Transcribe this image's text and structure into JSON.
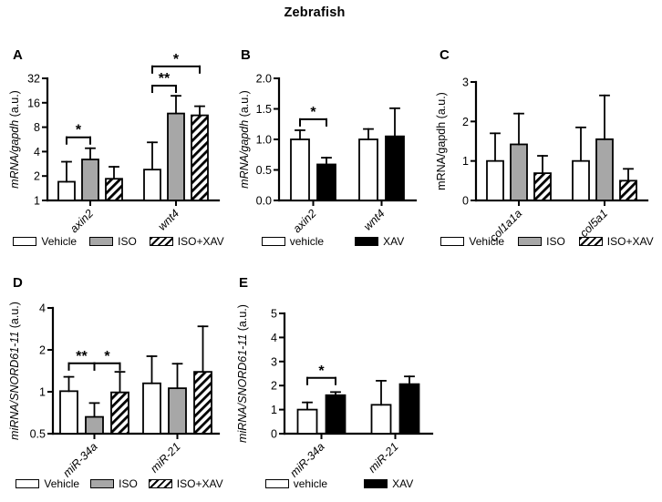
{
  "title": "Zebrafish",
  "colors": {
    "bar_gray": "#a7a7a7",
    "bar_black": "#000000",
    "bar_white": "#ffffff",
    "axis": "#000000",
    "background": "#ffffff"
  },
  "chart_data": [
    {
      "panel": "A",
      "type": "bar",
      "scale": "log2",
      "ylabel_main": "mRNA/gapdh",
      "ylabel_unit": " (a.u.)",
      "ylabel_italic": true,
      "ylim": [
        1,
        32
      ],
      "yticks": [
        {
          "v": 1,
          "t": "1"
        },
        {
          "v": 2,
          "t": "2"
        },
        {
          "v": 4,
          "t": "4"
        },
        {
          "v": 8,
          "t": "8"
        },
        {
          "v": 16,
          "t": "16"
        },
        {
          "v": 32,
          "t": "32"
        }
      ],
      "categories": [
        "axin2",
        "wnt4"
      ],
      "series": [
        {
          "name": "Vehicle",
          "fill": "white",
          "values": [
            1.7,
            2.4
          ],
          "err_top": [
            3.0,
            5.2
          ]
        },
        {
          "name": "ISO",
          "fill": "gray",
          "values": [
            3.2,
            11.8
          ],
          "err_top": [
            4.4,
            19.5
          ]
        },
        {
          "name": "ISO+XAV",
          "fill": "hatch",
          "values": [
            1.85,
            11.2
          ],
          "err_top": [
            2.6,
            14.5
          ]
        }
      ],
      "significance": [
        {
          "cat": 0,
          "from": 0,
          "to": 1,
          "label": "*",
          "y": 6
        },
        {
          "cat": 1,
          "from": 0,
          "to": 1,
          "label": "**",
          "y": 26
        },
        {
          "cat": 1,
          "from": 0,
          "to": 2,
          "label": "*",
          "y": 45
        }
      ],
      "legend": [
        "Vehicle",
        "ISO",
        "ISO+XAV"
      ]
    },
    {
      "panel": "B",
      "type": "bar",
      "scale": "linear",
      "ylabel_main": "mRNA/gapdh",
      "ylabel_unit": " (a.u.)",
      "ylabel_italic": true,
      "ylim": [
        0,
        2
      ],
      "yticks": [
        {
          "v": 0,
          "t": "0.0"
        },
        {
          "v": 0.5,
          "t": "0.5"
        },
        {
          "v": 1.0,
          "t": "1.0"
        },
        {
          "v": 1.5,
          "t": "1.5"
        },
        {
          "v": 2.0,
          "t": "2.0"
        }
      ],
      "categories": [
        "axin2",
        "wnt4"
      ],
      "series": [
        {
          "name": "vehicle",
          "fill": "white",
          "values": [
            1.0,
            1.0
          ],
          "err_top": [
            1.15,
            1.17
          ]
        },
        {
          "name": "XAV",
          "fill": "black",
          "values": [
            0.59,
            1.05
          ],
          "err_top": [
            0.7,
            1.51
          ]
        }
      ],
      "significance": [
        {
          "cat": 0,
          "from": 0,
          "to": 1,
          "label": "*",
          "y": 1.33
        }
      ],
      "legend": [
        "vehicle",
        "XAV"
      ]
    },
    {
      "panel": "C",
      "type": "bar",
      "scale": "linear",
      "ylabel_main": "mRNA/gapdh",
      "ylabel_unit": " (a.u.)",
      "ylabel_italic": false,
      "ylim": [
        0,
        3
      ],
      "yticks": [
        {
          "v": 0,
          "t": "0"
        },
        {
          "v": 1,
          "t": "1"
        },
        {
          "v": 2,
          "t": "2"
        },
        {
          "v": 3,
          "t": "3"
        }
      ],
      "categories": [
        "col1a1a",
        "col5a1"
      ],
      "series": [
        {
          "name": "Vehicle",
          "fill": "white",
          "values": [
            1.0,
            1.0
          ],
          "err_top": [
            1.7,
            1.85
          ]
        },
        {
          "name": "ISO",
          "fill": "gray",
          "values": [
            1.42,
            1.55
          ],
          "err_top": [
            2.2,
            2.66
          ]
        },
        {
          "name": "ISO+XAV",
          "fill": "hatch",
          "values": [
            0.69,
            0.5
          ],
          "err_top": [
            1.13,
            0.8
          ]
        }
      ],
      "significance": [],
      "legend": [
        "Vehicle",
        "ISO",
        "ISO+XAV"
      ]
    },
    {
      "panel": "D",
      "type": "bar",
      "scale": "log2",
      "ylabel_main": "miRNA/SNORD61-11",
      "ylabel_unit": " (a.u.)",
      "ylabel_italic": true,
      "ylim": [
        0.5,
        4
      ],
      "yticks": [
        {
          "v": 0.5,
          "t": "0.5"
        },
        {
          "v": 1,
          "t": "1"
        },
        {
          "v": 2,
          "t": "2"
        },
        {
          "v": 4,
          "t": "4"
        }
      ],
      "categories": [
        "miR-34a",
        "miR-21"
      ],
      "series": [
        {
          "name": "Vehicle",
          "fill": "white",
          "values": [
            1.01,
            1.15
          ],
          "err_top": [
            1.28,
            1.8
          ]
        },
        {
          "name": "ISO",
          "fill": "gray",
          "values": [
            0.66,
            1.06
          ],
          "err_top": [
            0.83,
            1.59
          ]
        },
        {
          "name": "ISO+XAV",
          "fill": "hatch",
          "values": [
            0.99,
            1.39
          ],
          "err_top": [
            1.39,
            2.95
          ]
        }
      ],
      "significance": [
        {
          "cat": 0,
          "from": 0,
          "to": 1,
          "label": "**",
          "y": 1.6
        },
        {
          "cat": 0,
          "from": 1,
          "to": 2,
          "label": "*",
          "y": 1.6
        }
      ],
      "legend": [
        "Vehicle",
        "ISO",
        "ISO+XAV"
      ]
    },
    {
      "panel": "E",
      "type": "bar",
      "scale": "linear",
      "ylabel_main": "miRNA/SNORD61-11",
      "ylabel_unit": " (a.u.)",
      "ylabel_italic": true,
      "ylim": [
        0,
        5
      ],
      "yticks": [
        {
          "v": 0,
          "t": "0"
        },
        {
          "v": 1,
          "t": "1"
        },
        {
          "v": 2,
          "t": "2"
        },
        {
          "v": 3,
          "t": "3"
        },
        {
          "v": 4,
          "t": "4"
        },
        {
          "v": 5,
          "t": "5"
        }
      ],
      "categories": [
        "miR-34a",
        "miR-21"
      ],
      "series": [
        {
          "name": "vehicle",
          "fill": "white",
          "values": [
            1.0,
            1.2
          ],
          "err_top": [
            1.3,
            2.2
          ]
        },
        {
          "name": "XAV",
          "fill": "black",
          "values": [
            1.6,
            2.06
          ],
          "err_top": [
            1.73,
            2.38
          ]
        }
      ],
      "significance": [
        {
          "cat": 0,
          "from": 0,
          "to": 1,
          "label": "*",
          "y": 2.32
        }
      ],
      "legend": [
        "vehicle",
        "XAV"
      ]
    }
  ]
}
